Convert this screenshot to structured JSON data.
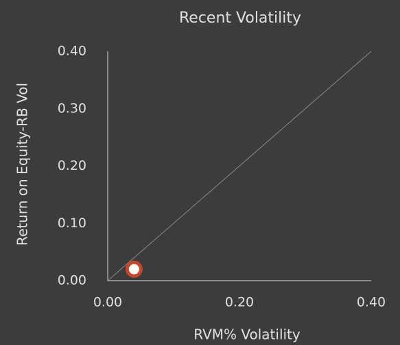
{
  "chart_data": {
    "type": "scatter",
    "title": "Recent Volatility",
    "x_label": "RVM% Volatility",
    "y_label": "Return on Equity-RB Vol",
    "x": [
      0.04
    ],
    "values": [
      0.02
    ],
    "color": "#c8462a",
    "xlim": [
      0,
      0.4
    ],
    "ylim": [
      0,
      0.4
    ],
    "xticks": [
      {
        "value": 0,
        "label": "0.00"
      },
      {
        "value": 0.2,
        "label": "0.20"
      },
      {
        "value": 0.4,
        "label": "0.40"
      }
    ],
    "yticks": [
      {
        "value": 0,
        "label": "0.00"
      },
      {
        "value": 0.1,
        "label": "0.10"
      },
      {
        "value": 0.2,
        "label": "0.20"
      },
      {
        "value": 0.3,
        "label": "0.30"
      },
      {
        "value": 0.4,
        "label": "0.40"
      }
    ]
  }
}
